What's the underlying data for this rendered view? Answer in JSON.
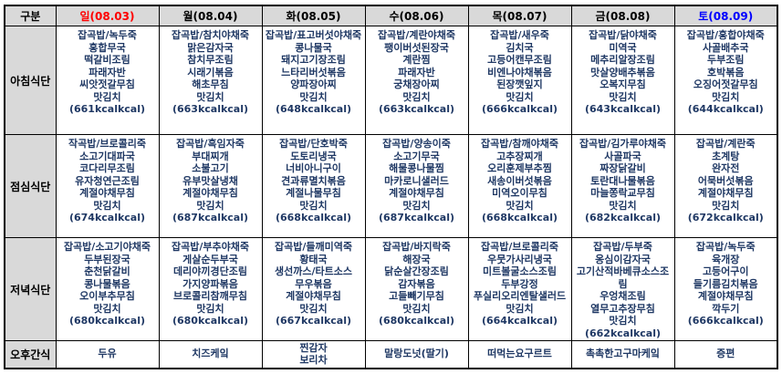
{
  "table": {
    "corner_label": "구분",
    "columns": [
      {
        "label": "일(08.03)",
        "color": "#ff0000"
      },
      {
        "label": "월(08.04)",
        "color": "#000000"
      },
      {
        "label": "화(08.05)",
        "color": "#000000"
      },
      {
        "label": "수(08.06)",
        "color": "#000000"
      },
      {
        "label": "목(08.07)",
        "color": "#000000"
      },
      {
        "label": "금(08.08)",
        "color": "#000000"
      },
      {
        "label": "토(08.09)",
        "color": "#0000ff"
      }
    ],
    "meals": [
      {
        "label": "아침식단",
        "cells": [
          [
            "잡곡밥/녹두죽",
            "홍합무국",
            "떡갈비조림",
            "파래자반",
            "씨앗젓갈무침",
            "맛김치",
            "(661kcalkcal)"
          ],
          [
            "잡곡밥/참치야채죽",
            "맑은감자국",
            "참치무조림",
            "시래기볶음",
            "해초무침",
            "맛김치",
            "(663kcalkcal)"
          ],
          [
            "잡곡밥/표고버섯야채죽",
            "콩나물국",
            "돼지고기장조림",
            "느타리버섯볶음",
            "양파장아찌",
            "맛김치",
            "(648kcalkcal)"
          ],
          [
            "잡곡밥/계란야채죽",
            "팽이버섯된장국",
            "계란찜",
            "파래자반",
            "궁채장아찌",
            "맛김치",
            "(663kcalkcal)"
          ],
          [
            "잡곡밥/새우죽",
            "김치국",
            "고등어캔무조림",
            "비엔나야채볶음",
            "된장깻잎지",
            "맛김치",
            "(666kcalkcal)"
          ],
          [
            "잡곡밥/닭야채죽",
            "미역국",
            "메추리알장조림",
            "맛살양배추볶음",
            "오복지무침",
            "맛김치",
            "(643kcalkcal)"
          ],
          [
            "잡곡밥/홍합야채죽",
            "사골배추국",
            "두부조림",
            "호박볶음",
            "오징어젓갈무침",
            "맛김치",
            "(644kcalkcal)"
          ]
        ]
      },
      {
        "label": "점심식단",
        "cells": [
          [
            "작곡밥/브로콜리죽",
            "소고기대파국",
            "코다리무조림",
            "유자청연근조림",
            "계절야채무침",
            "맛김치",
            "(674kcalkcal)"
          ],
          [
            "잡곡밥/흑임자죽",
            "부대찌개",
            "소불고기",
            "유부맛살냉채",
            "계절야채무침",
            "맛김치",
            "(687kcalkcal)"
          ],
          [
            "잡곡밥/단호박죽",
            "도토리냉국",
            "너비아니구이",
            "견과류멸치볶음",
            "계절나물무침",
            "맛김치",
            "(668kcalkcal)"
          ],
          [
            "잡곡밥/양송이죽",
            "소고기무국",
            "해물콩나물찜",
            "마카로니샐러드",
            "계절야채무침",
            "맛김치",
            "(687kcalkcal)"
          ],
          [
            "잡곡밥/참깨야채죽",
            "고추장찌개",
            "오리훈제부추찜",
            "새송이버섯볶음",
            "미역오이무침",
            "맛김치",
            "(668kcalkcal)"
          ],
          [
            "잡곡밥/김가루야채죽",
            "사골파국",
            "짜장닭갈비",
            "토란대나물볶음",
            "마늘쫑락교무침",
            "맛김치",
            "(682kcalkcal)"
          ],
          [
            "잡곡밥/계란죽",
            "초계탕",
            "완자전",
            "어묵버섯볶음",
            "계절야채무침",
            "맛김치",
            "(672kcalkcal)"
          ]
        ]
      },
      {
        "label": "저녁식단",
        "cells": [
          [
            "잡곡밥/소고기야채죽",
            "두부된장국",
            "춘천닭갈비",
            "콩나물볶음",
            "오이부추무침",
            "맛김치",
            "(680kcalkcal)"
          ],
          [
            "잡곡밥/부추야채죽",
            "게살순두부국",
            "데리야끼경단조림",
            "가지양파볶음",
            "브로콜리참깨무침",
            "맛김치",
            "(680kcalkcal)"
          ],
          [
            "잡곡밥/들깨미역죽",
            "황태국",
            "생선까스/타트소스",
            "무우볶음",
            "계절야채무침",
            "맛김치",
            "(667kcalkcal)"
          ],
          [
            "잡곡밥/바지락죽",
            "해장국",
            "닭순살간장조림",
            "감자볶음",
            "고들빼기무침",
            "맛김치",
            "(680kcalkcal)"
          ],
          [
            "잡곡밥/브로콜리죽",
            "우뭇가사리냉국",
            "미트볼굴소스조림",
            "두부강정",
            "푸실리오리엔탈샐러드",
            "맛김치",
            "(664kcalkcal)"
          ],
          [
            "잡곡밥/두부죽",
            "옹심이감자국",
            "고기산적바베큐소스조림",
            "우엉채조림",
            "열무고추장무침",
            "맛김치",
            "(662kcalkcal)"
          ],
          [
            "잡곡밥/녹두죽",
            "육개장",
            "고등어구이",
            "들기름김치볶음",
            "계절야채무침",
            "깍두기",
            "(666kcalkcal)"
          ]
        ]
      },
      {
        "label": "오후간식",
        "cells": [
          [
            "두유"
          ],
          [
            "치즈케잌"
          ],
          [
            "찐감자",
            "보리차"
          ],
          [
            "말랑도넛(딸기)"
          ],
          [
            "떠먹는요구르트"
          ],
          [
            "촉촉한고구마케잌"
          ],
          [
            "증편"
          ]
        ]
      }
    ]
  },
  "colors": {
    "header_bg": "#d9d9d9",
    "label_bg": "#d9d9d9",
    "menu_text": "#1f3864",
    "sunday_text": "#ff0000",
    "saturday_text": "#0000ff",
    "border": "#000000"
  }
}
